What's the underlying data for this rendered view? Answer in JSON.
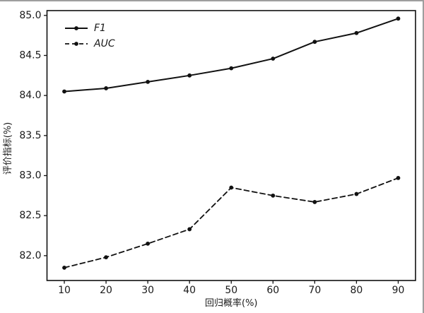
{
  "figure": {
    "background": "#ffffff",
    "outer_border_color": "#9e9e9e",
    "line_color": "#111111"
  },
  "chart_data": {
    "type": "line",
    "title": "",
    "xlabel": "回归概率(%)",
    "ylabel": "评价指标(%)",
    "x": [
      10,
      20,
      30,
      40,
      50,
      60,
      70,
      80,
      90
    ],
    "series": [
      {
        "name": "F1",
        "style": "solid",
        "marker": "circle",
        "color": "#111111",
        "values": [
          84.05,
          84.09,
          84.17,
          84.25,
          84.34,
          84.46,
          84.67,
          84.78,
          84.96
        ]
      },
      {
        "name": "AUC",
        "style": "dashed",
        "marker": "circle",
        "color": "#111111",
        "values": [
          81.85,
          81.98,
          82.15,
          82.33,
          82.85,
          82.75,
          82.67,
          82.77,
          82.97
        ]
      }
    ],
    "xlim": [
      5.85,
      94.15
    ],
    "ylim": [
      81.69,
      85.06
    ],
    "xticks": [
      10,
      20,
      30,
      40,
      50,
      60,
      70,
      80,
      90
    ],
    "xtick_labels": [
      "10",
      "20",
      "30",
      "40",
      "50",
      "60",
      "70",
      "80",
      "90"
    ],
    "yticks": [
      82.0,
      82.5,
      83.0,
      83.5,
      84.0,
      84.5,
      85.0
    ],
    "ytick_labels": [
      "82.0",
      "82.5",
      "83.0",
      "83.5",
      "84.0",
      "84.5",
      "85.0"
    ],
    "grid": false,
    "legend_position": "upper-left"
  }
}
